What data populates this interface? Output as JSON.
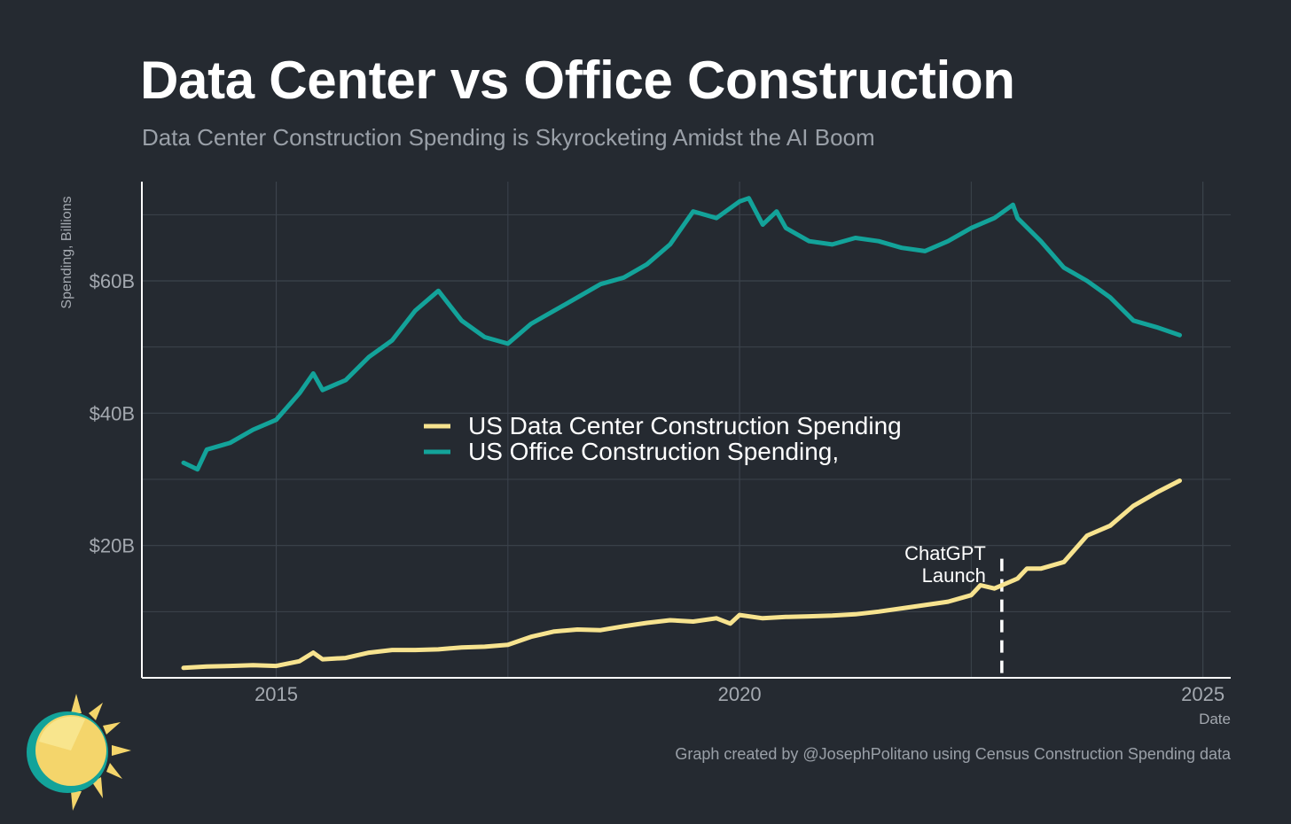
{
  "title": "Data Center vs Office Construction",
  "subtitle": "Data Center Construction Spending is Skyrocketing Amidst the AI Boom",
  "caption": "Graph created by @JosephPolitano using Census Construction Spending data",
  "colors": {
    "background": "#252a31",
    "grid": "#3c434c",
    "axis": "#ffffff",
    "tick_text": "#a4a9b0",
    "data_center": "#f7e38f",
    "office": "#13a39a",
    "annotation": "#ffffff"
  },
  "logo": "sun-icon",
  "chart_data": {
    "type": "line",
    "xlabel": "Date",
    "ylabel": "Spending, Billions",
    "xlim": [
      2013.55,
      2025.3
    ],
    "ylim": [
      0,
      75
    ],
    "x_ticks": [
      2015,
      2020,
      2025
    ],
    "x_tick_labels": [
      "2015",
      "2020",
      "2025"
    ],
    "y_ticks": [
      20,
      40,
      60
    ],
    "y_tick_labels": [
      "$20B",
      "$40B",
      "$60B"
    ],
    "grid": true,
    "legend_position": "center",
    "annotation": {
      "text_lines": [
        "ChatGPT",
        "Launch"
      ],
      "x": 2022.83,
      "y_range": [
        0,
        18
      ]
    },
    "series": [
      {
        "name": "US Data Center Construction Spending",
        "key": "data_center",
        "color": "#f7e38f",
        "x": [
          2014.0,
          2014.25,
          2014.5,
          2014.75,
          2015.0,
          2015.25,
          2015.4,
          2015.5,
          2015.75,
          2016.0,
          2016.25,
          2016.5,
          2016.75,
          2017.0,
          2017.25,
          2017.5,
          2017.75,
          2018.0,
          2018.25,
          2018.5,
          2018.75,
          2019.0,
          2019.25,
          2019.5,
          2019.75,
          2019.9,
          2020.0,
          2020.25,
          2020.5,
          2020.75,
          2021.0,
          2021.25,
          2021.5,
          2021.75,
          2022.0,
          2022.25,
          2022.5,
          2022.6,
          2022.75,
          2023.0,
          2023.1,
          2023.25,
          2023.5,
          2023.75,
          2024.0,
          2024.25,
          2024.5,
          2024.75
        ],
        "y": [
          1.5,
          1.7,
          1.8,
          1.9,
          1.8,
          2.5,
          3.8,
          2.8,
          3.0,
          3.8,
          4.2,
          4.2,
          4.3,
          4.6,
          4.7,
          5.0,
          6.2,
          7.0,
          7.3,
          7.2,
          7.8,
          8.3,
          8.7,
          8.5,
          9.0,
          8.2,
          9.5,
          9.0,
          9.2,
          9.3,
          9.4,
          9.6,
          10.0,
          10.5,
          11.0,
          11.5,
          12.5,
          14.0,
          13.5,
          15.0,
          16.5,
          16.5,
          17.5,
          21.5,
          23.0,
          26.0,
          28.0,
          29.8
        ]
      },
      {
        "name": "US Office Construction Spending,",
        "key": "office",
        "color": "#13a39a",
        "x": [
          2014.0,
          2014.15,
          2014.25,
          2014.5,
          2014.75,
          2015.0,
          2015.25,
          2015.4,
          2015.5,
          2015.75,
          2016.0,
          2016.25,
          2016.5,
          2016.75,
          2017.0,
          2017.25,
          2017.5,
          2017.75,
          2018.0,
          2018.25,
          2018.5,
          2018.75,
          2019.0,
          2019.25,
          2019.5,
          2019.75,
          2020.0,
          2020.1,
          2020.25,
          2020.4,
          2020.5,
          2020.75,
          2021.0,
          2021.25,
          2021.5,
          2021.75,
          2022.0,
          2022.25,
          2022.5,
          2022.75,
          2022.95,
          2023.0,
          2023.25,
          2023.5,
          2023.75,
          2024.0,
          2024.25,
          2024.5,
          2024.75
        ],
        "y": [
          32.5,
          31.5,
          34.5,
          35.5,
          37.5,
          39.0,
          43.0,
          46.0,
          43.5,
          45.0,
          48.5,
          51.0,
          55.5,
          58.5,
          54.0,
          51.5,
          50.5,
          53.5,
          55.5,
          57.5,
          59.5,
          60.5,
          62.5,
          65.5,
          70.5,
          69.5,
          72.0,
          72.5,
          68.5,
          70.5,
          68.0,
          66.0,
          65.5,
          66.5,
          66.0,
          65.0,
          64.5,
          66.0,
          68.0,
          69.5,
          71.5,
          69.5,
          66.0,
          62.0,
          60.0,
          57.5,
          54.0,
          53.0,
          51.8
        ]
      }
    ]
  }
}
